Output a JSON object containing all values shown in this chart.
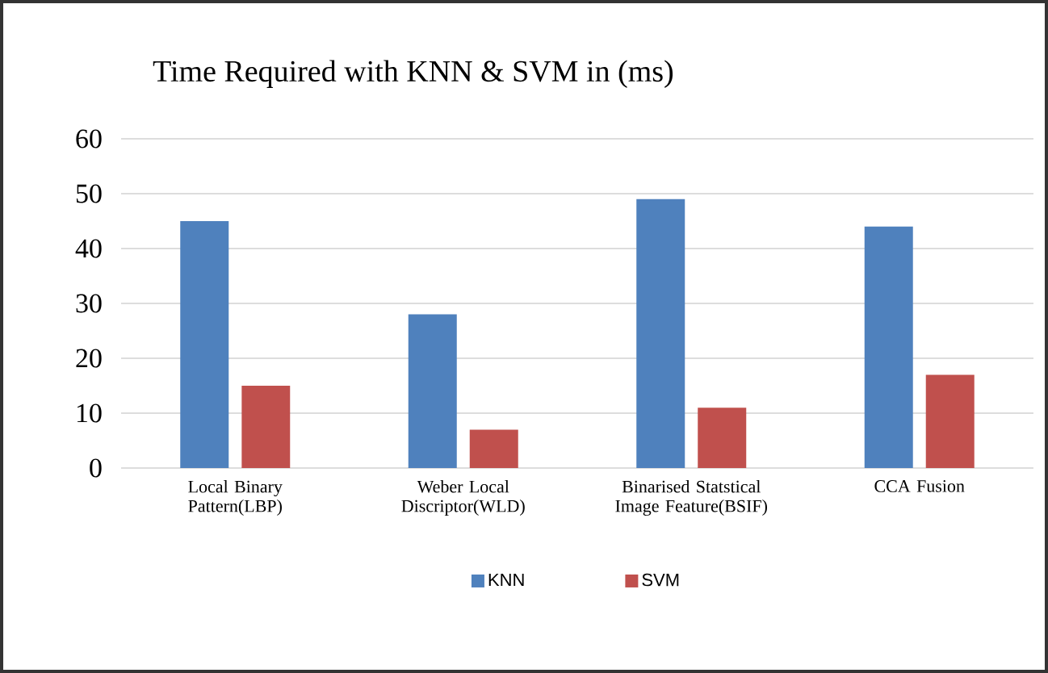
{
  "chart_data": {
    "type": "bar",
    "title": "Time Required with KNN & SVM in (ms)",
    "categories": [
      "Local Binary Pattern(LBP)",
      "Weber Local Discriptor(WLD)",
      "Binarised Statstical Image Feature(BSIF)",
      "CCA Fusion"
    ],
    "series": [
      {
        "name": "KNN",
        "color": "#4f81bd",
        "values": [
          45,
          28,
          49,
          44
        ]
      },
      {
        "name": "SVM",
        "color": "#c0504d",
        "values": [
          15,
          7,
          11,
          17
        ]
      }
    ],
    "ylim": [
      0,
      60
    ],
    "yticks": [
      0,
      10,
      20,
      30,
      40,
      50,
      60
    ],
    "grid": "y",
    "legend": "bottom"
  }
}
